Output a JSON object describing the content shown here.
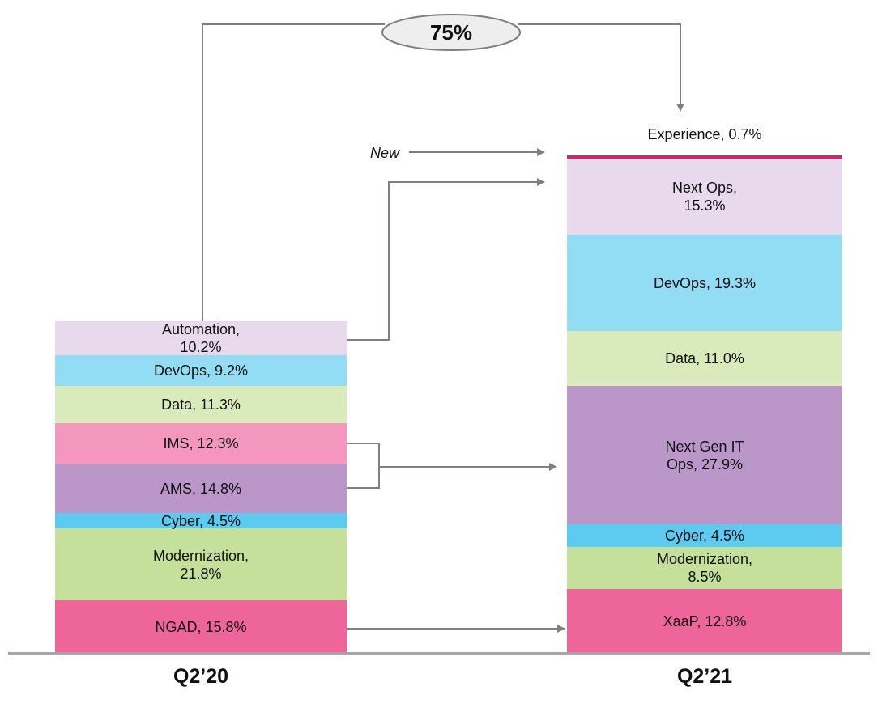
{
  "chart_data": {
    "type": "stacked_bar",
    "categories": [
      "Q2’20",
      "Q2’21"
    ],
    "annotations": {
      "growth": "75%",
      "new": "New"
    },
    "bars": [
      {
        "ylim": [
          0,
          150
        ],
        "segments": [
          {
            "value": 15.8,
            "value_label": "NGAD, 15.8%",
            "color": "#ee6699"
          },
          {
            "value": 21.8,
            "value_label": "Modernization, 21.8%",
            "color": "#c5e09a"
          },
          {
            "value": 4.5,
            "value_label": "Cyber, 4.5%",
            "color": "#5dcaf0"
          },
          {
            "value": 14.8,
            "value_label": "AMS, 14.8%",
            "color": "#bb97c9"
          },
          {
            "value": 12.3,
            "value_label": "IMS, 12.3%",
            "color": "#f397be"
          },
          {
            "value": 11.3,
            "value_label": "Data, 11.3%",
            "color": "#d9eabb"
          },
          {
            "value": 9.2,
            "value_label": "DevOps, 9.2%",
            "color": "#92dcf4"
          },
          {
            "value": 10.2,
            "value_label": "Automation, 10.2%",
            "color": "#e8d9ec"
          }
        ]
      },
      {
        "ylim": [
          0,
          100
        ],
        "segments": [
          {
            "value": 12.8,
            "value_label": "XaaP, 12.8%",
            "color": "#ee6699"
          },
          {
            "value": 8.5,
            "value_label": "Modernization, 8.5%",
            "color": "#c5e09a"
          },
          {
            "value": 4.5,
            "value_label": "Cyber, 4.5%",
            "color": "#5dcaf0"
          },
          {
            "value": 27.9,
            "value_label": "Next Gen IT Ops, 27.9%",
            "color": "#bb97c9"
          },
          {
            "value": 11.0,
            "value_label": "Data, 11.0%",
            "color": "#d9eabb"
          },
          {
            "value": 19.3,
            "value_label": "DevOps, 19.3%",
            "color": "#92dcf4"
          },
          {
            "value": 15.3,
            "value_label": "Next Ops, 15.3%",
            "color": "#e8d9ec"
          },
          {
            "value": 0.7,
            "value_label": "Experience, 0.7%",
            "color": "#d0246b"
          }
        ]
      }
    ]
  }
}
